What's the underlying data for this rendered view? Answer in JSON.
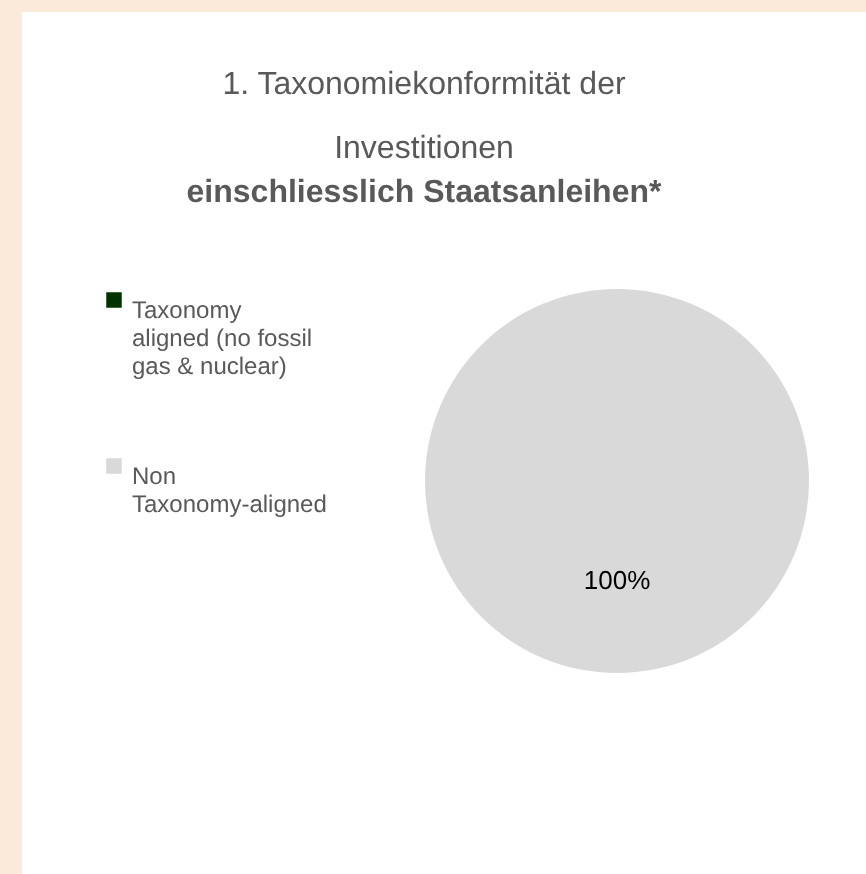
{
  "chart_data": {
    "type": "pie",
    "title": "1. Taxonomiekonformität der Investitionen",
    "subtitle": "einschliesslich Staatsanleihen*",
    "categories": [
      "Taxonomy aligned (no fossil gas & nuclear)",
      "Non Taxonomy-aligned"
    ],
    "values": [
      0,
      100
    ],
    "colors": [
      "#003300",
      "#d9d9d9"
    ],
    "value_labels": [
      null,
      "100%"
    ],
    "legend": "left"
  }
}
